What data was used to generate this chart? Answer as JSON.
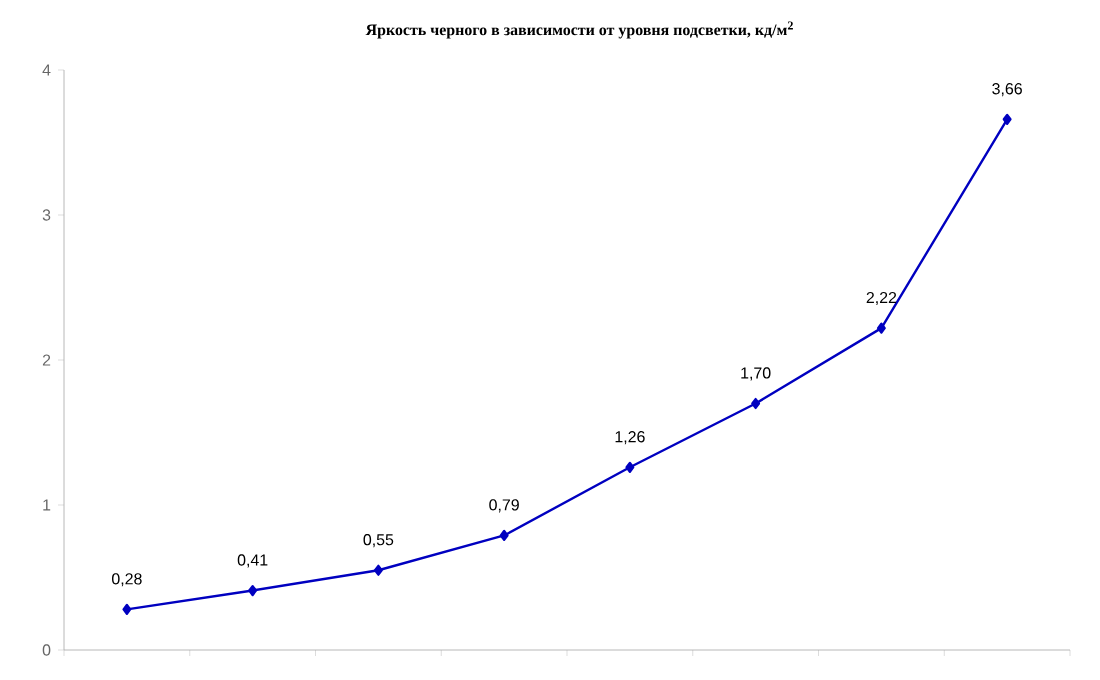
{
  "chart_data": {
    "type": "line",
    "title": "Яркость черного в зависимости от уровня подсветки, кд/м$^{2}$",
    "categories": [
      null,
      null,
      null,
      null,
      null,
      null,
      null,
      null
    ],
    "series": [
      {
        "color": "#0000c0",
        "values": [
          0.28,
          0.41,
          0.55,
          0.79,
          1.26,
          1.7,
          2.22,
          3.66
        ],
        "value_labels": [
          "0,28",
          "0,41",
          "0,55",
          "0,79",
          "1,26",
          "1,70",
          "2,22",
          "3,66"
        ]
      }
    ],
    "ylim": [
      0,
      4
    ],
    "yticks": [
      0,
      1,
      2,
      3,
      4
    ],
    "marker": "diamond",
    "line_style": "solid",
    "grid": false
  }
}
